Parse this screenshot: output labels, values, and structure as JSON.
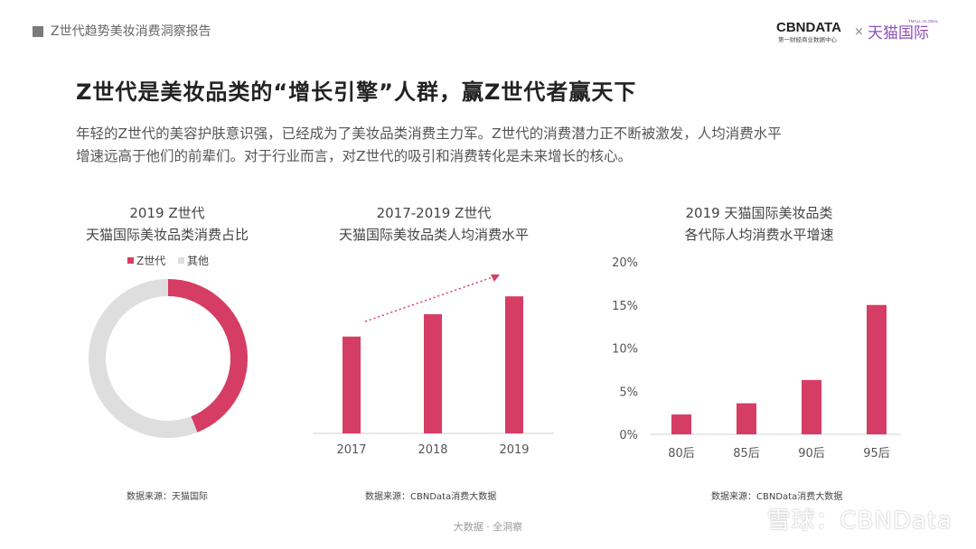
{
  "header": {
    "title": "Z世代趋势美妆消费洞察报告"
  },
  "logo": {
    "left": "CBNDATA",
    "sub": "第一财经商业数据中心",
    "x": "×",
    "right": "天猫国际",
    "small": "TMALL GLOBAL"
  },
  "main": {
    "title": "Z世代是美妆品类的“增长引擎”人群，赢Z世代者赢天下",
    "paragraph": [
      "年轻的Z世代的美容护肤意识强，已经成为了美妆品类消费主力军。Z世代的消费潜力正不断被激发，人均消费水平",
      "增速远高于他们的前辈们。对于行业而言，对Z世代的吸引和消费转化是未来增长的核心。"
    ]
  },
  "colors": {
    "accent": "#D63D64",
    "gray": "#DEDEDE",
    "text": "#444444"
  },
  "charts": {
    "pie": {
      "title_line1": "2019 Z世代",
      "title_line2": "天猫国际美妆品类消费占比",
      "source": "数据来源：天猫国际"
    },
    "bar1": {
      "title_line1": "2017-2019 Z世代",
      "title_line2": "天猫国际美妆品类人均消费水平",
      "source": "数据来源：CBNData消费大数据"
    },
    "bar2": {
      "title_line1": "2019 天猫国际美妆品类",
      "title_line2": "各代际人均消费水平增速",
      "source": "数据来源：CBNData消费大数据"
    }
  },
  "chart_data": [
    {
      "type": "pie",
      "style": "donut",
      "title": "2019 Z世代 天猫国际美妆品类消费占比",
      "legend_position": "top",
      "categories": [
        "Z世代",
        "其他"
      ],
      "values": [
        44,
        56
      ],
      "colors": [
        "#D63D64",
        "#DEDEDE"
      ]
    },
    {
      "type": "bar",
      "title": "2017-2019 Z世代 天猫国际美妆品类人均消费水平",
      "categories": [
        "2017",
        "2018",
        "2019"
      ],
      "values": [
        65,
        80,
        92
      ],
      "y_axis_shown": false,
      "trend_arrow": true,
      "color": "#D63D64"
    },
    {
      "type": "bar",
      "title": "2019 天猫国际美妆品类 各代际人均消费水平增速",
      "categories": [
        "80后",
        "85后",
        "90后",
        "95后"
      ],
      "values": [
        2.3,
        3.6,
        6.3,
        15.0
      ],
      "ylim": [
        0,
        20
      ],
      "yticks": [
        "0%",
        "5%",
        "10%",
        "15%",
        "20%"
      ],
      "grid": false,
      "color": "#D63D64"
    }
  ],
  "footer": {
    "text": "大数据 · 全洞察"
  },
  "watermark": {
    "text": "雪球：CBNData"
  }
}
